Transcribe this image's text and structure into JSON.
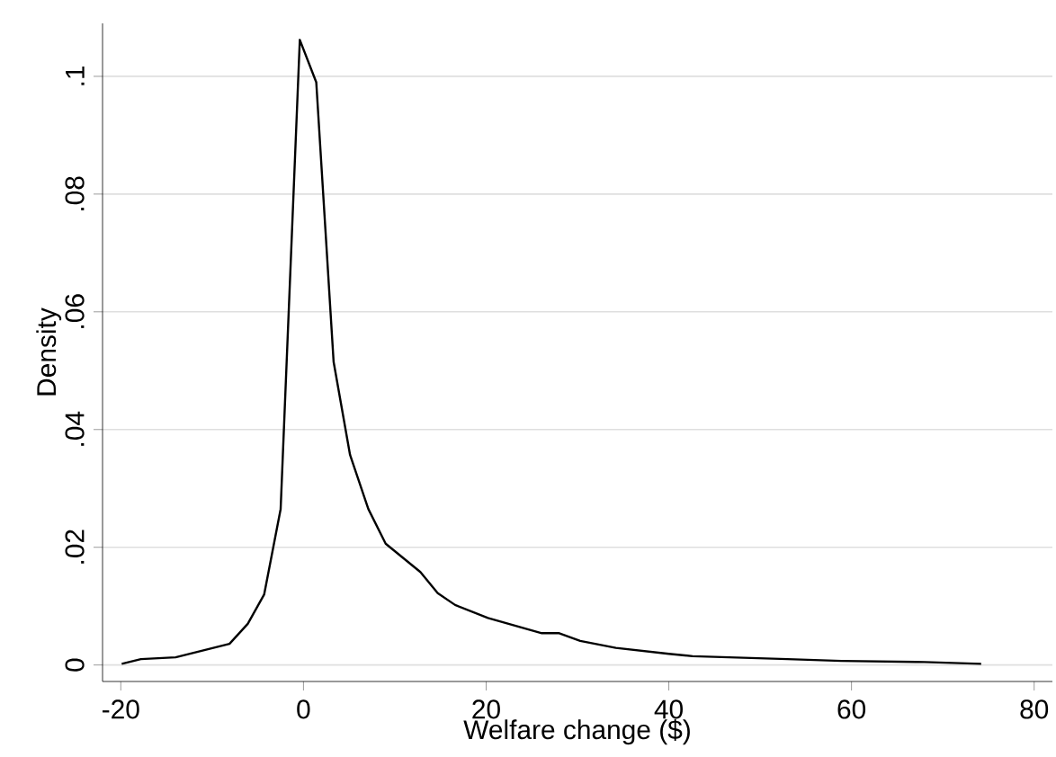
{
  "chart_data": {
    "type": "line",
    "xlabel": "Welfare change ($)",
    "ylabel": "Density",
    "xlim": [
      -22,
      82
    ],
    "ylim": [
      -0.0028,
      0.109
    ],
    "xticks": [
      -20,
      0,
      20,
      40,
      60,
      80
    ],
    "yticks": [
      0,
      {
        "value": 0.02,
        "label": ".02"
      },
      {
        "value": 0.04,
        "label": ".04"
      },
      {
        "value": 0.06,
        "label": ".06"
      },
      {
        "value": 0.08,
        "label": ".08"
      },
      {
        "value": 0.1,
        "label": ".1"
      }
    ],
    "grid": "y",
    "marker": "none",
    "line_style": "solid",
    "series": [
      {
        "color": "#000000",
        "x": [
          -19.9,
          -17.8,
          -14.0,
          -8.1,
          -6.1,
          -4.3,
          -2.5,
          -0.4,
          1.4,
          3.3,
          5.1,
          7.1,
          9.0,
          12.8,
          14.7,
          16.6,
          20.2,
          26.1,
          28.0,
          30.3,
          34.2,
          40.0,
          42.6,
          53.0,
          58.9,
          68.0,
          74.2
        ],
        "values": [
          0.0002,
          0.001,
          0.0013,
          0.0036,
          0.007,
          0.012,
          0.0265,
          0.1062,
          0.099,
          0.0515,
          0.0357,
          0.0265,
          0.0206,
          0.0158,
          0.0122,
          0.0102,
          0.008,
          0.0054,
          0.0054,
          0.0041,
          0.0029,
          0.0019,
          0.0015,
          0.001,
          0.0007,
          0.0005,
          0.0002
        ]
      }
    ]
  }
}
